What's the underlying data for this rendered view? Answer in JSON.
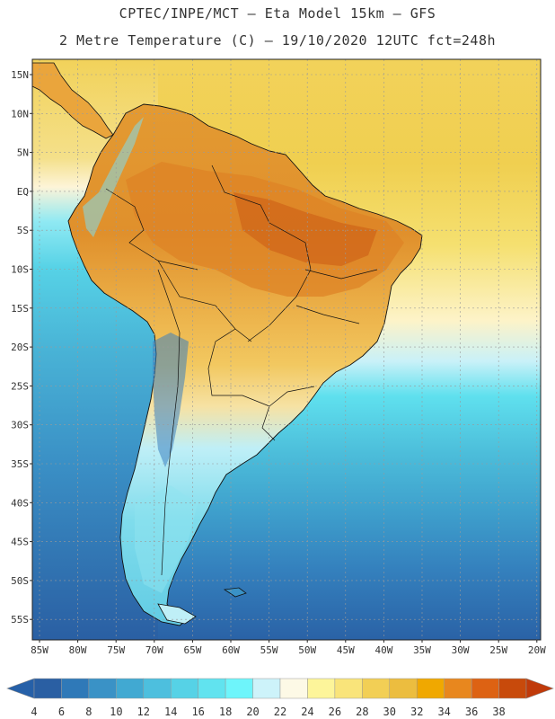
{
  "header": {
    "line1": "CPTEC/INPE/MCT –  Eta Model 15km – GFS",
    "line2": "2 Metre Temperature (C) – 19/10/2020 12UTC fct=248h"
  },
  "map": {
    "lat_ticks": [
      "15N",
      "10N",
      "5N",
      "EQ",
      "5S",
      "10S",
      "15S",
      "20S",
      "25S",
      "30S",
      "35S",
      "40S",
      "45S",
      "50S",
      "55S"
    ],
    "lon_ticks": [
      "85W",
      "80W",
      "75W",
      "70W",
      "65W",
      "60W",
      "55W",
      "50W",
      "45W",
      "40W",
      "35W",
      "30W",
      "25W",
      "20W"
    ]
  },
  "colorbar": {
    "labels": [
      "4",
      "6",
      "8",
      "10",
      "12",
      "14",
      "16",
      "18",
      "20",
      "22",
      "24",
      "26",
      "28",
      "30",
      "32",
      "34",
      "36",
      "38"
    ],
    "colors": [
      "#2a5fa3",
      "#2f79b8",
      "#3a92c6",
      "#41a9d2",
      "#4dbfde",
      "#56d2e6",
      "#61e3ef",
      "#6ef5fb",
      "#cdf3fa",
      "#fdf9e6",
      "#fdf59a",
      "#f9e47a",
      "#f2cf55",
      "#ecbd3f",
      "#f0a800",
      "#e8871e",
      "#dd6213",
      "#c84a0b"
    ],
    "low_arrow_color": "#2660a8",
    "high_arrow_color": "#c03a0a"
  }
}
